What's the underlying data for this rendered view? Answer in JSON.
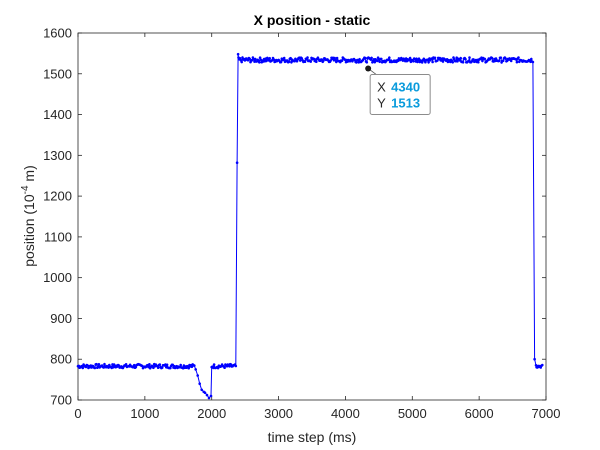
{
  "chart_data": {
    "type": "line",
    "title": "X position - static",
    "xlabel": "time step (ms)",
    "ylabel": "position (10",
    "ylabel_exponent": "-4",
    "ylabel_suffix": " m)",
    "xlim": [
      0,
      7000
    ],
    "ylim": [
      700,
      1600
    ],
    "xticks": [
      0,
      1000,
      2000,
      3000,
      4000,
      5000,
      6000,
      7000
    ],
    "yticks": [
      700,
      800,
      900,
      1000,
      1100,
      1200,
      1300,
      1400,
      1500,
      1600
    ],
    "grid": false,
    "series_color": "#0000ff",
    "series": [
      {
        "marker": "point",
        "segments": [
          {
            "x_start": 0,
            "x_end": 1740,
            "level": 783,
            "noise": 5
          },
          {
            "x_start": 1760,
            "x": [
              1760,
              1790,
              1820,
              1850,
              1880,
              1900,
              1930,
              1960,
              1990
            ],
            "y": [
              775,
              760,
              740,
              725,
              720,
              718,
              712,
              705,
              710
            ]
          },
          {
            "x_start": 2000,
            "x_end": 2370,
            "level": 783,
            "noise": 5
          },
          {
            "x": [
              2380,
              2395
            ],
            "y": [
              1282,
              1548
            ]
          },
          {
            "x_start": 2400,
            "x_end": 6810,
            "level": 1534,
            "noise": 6
          },
          {
            "x": [
              6830,
              6850
            ],
            "y": [
              800,
              785
            ]
          },
          {
            "x_start": 6860,
            "x_end": 6950,
            "level": 783,
            "noise": 4
          }
        ]
      }
    ],
    "datatip": {
      "x_label": "X",
      "x_value": "4340",
      "y_label": "Y",
      "y_value": "1513",
      "x": 4340,
      "y": 1513,
      "value_color": "#0a9bdc"
    }
  }
}
